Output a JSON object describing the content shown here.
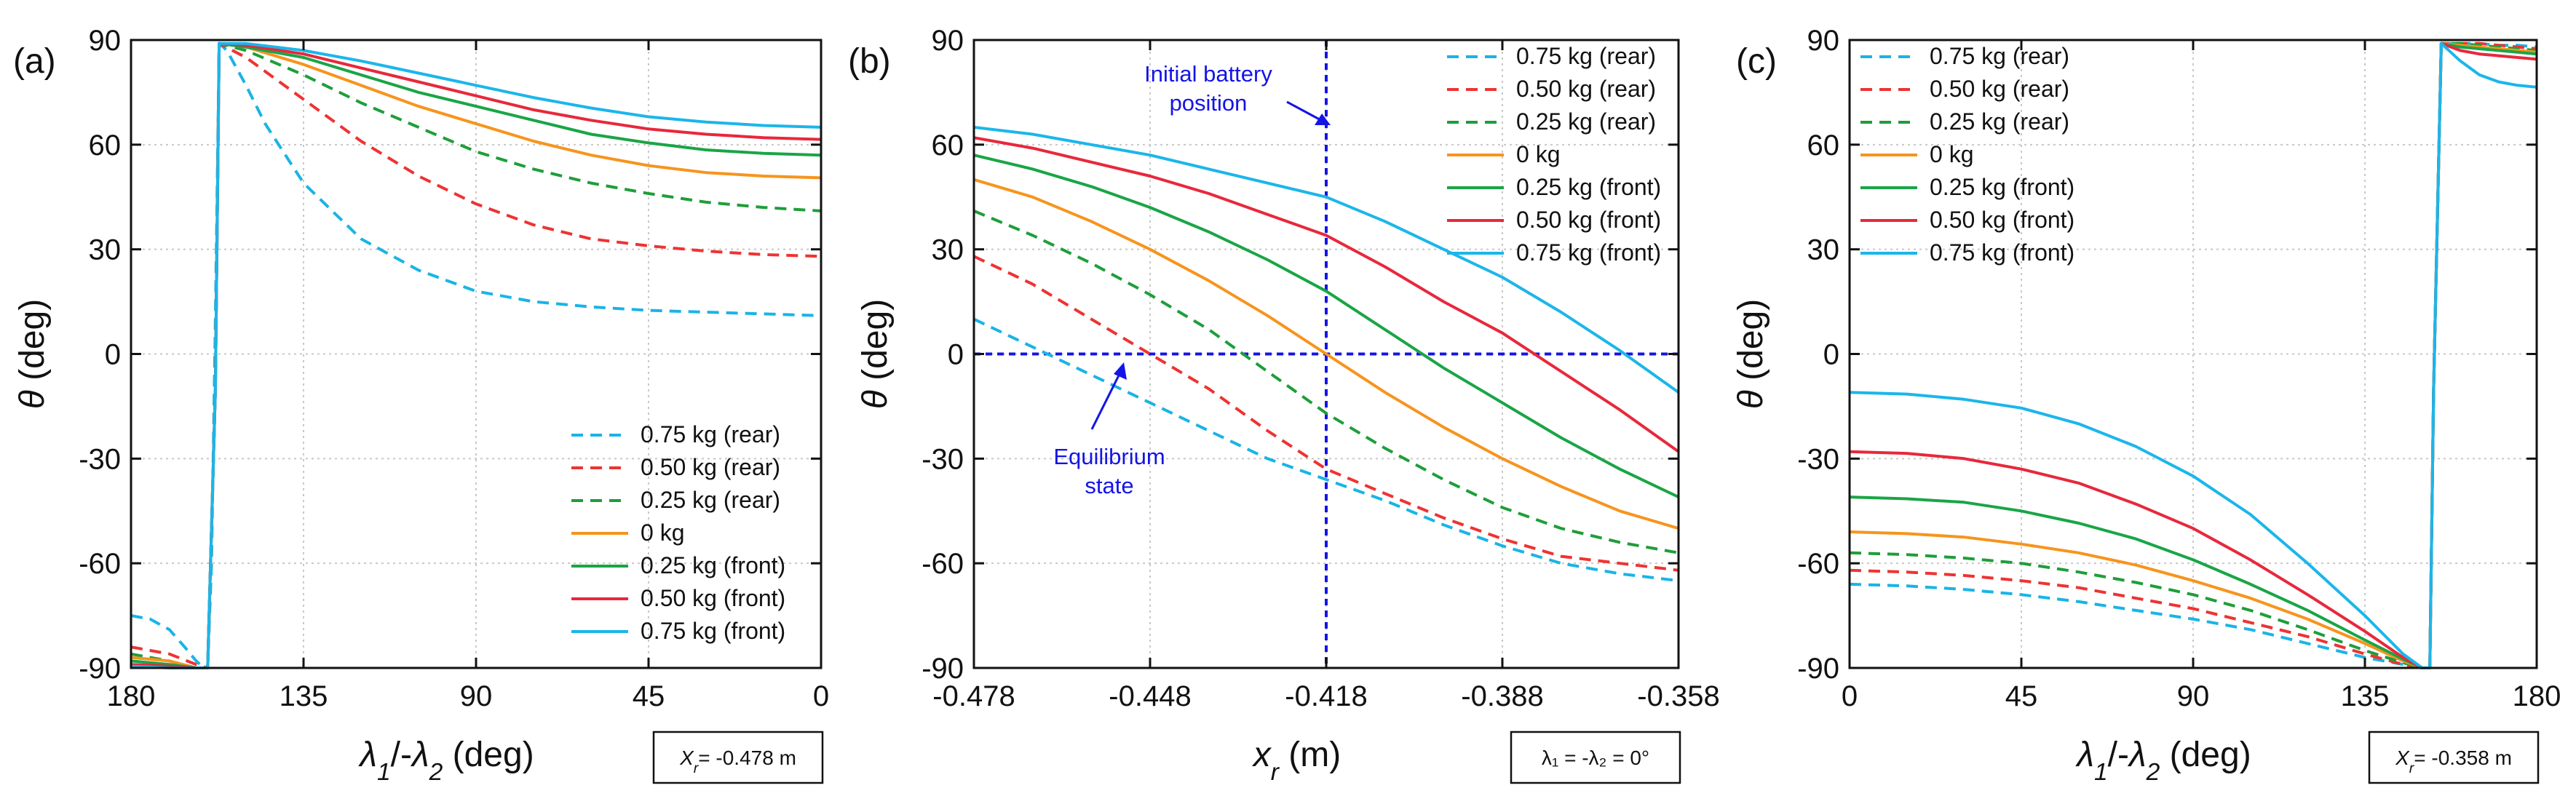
{
  "chart_data": [
    {
      "panel": "(a)",
      "type": "line",
      "xlabel_parts": [
        [
          "λ",
          "1"
        ],
        [
          "/-λ",
          "2"
        ],
        [
          " (deg)",
          ""
        ]
      ],
      "ylabel": "θ (deg)",
      "xlim": [
        180,
        0
      ],
      "ylim": [
        -90,
        90
      ],
      "xticks": [
        "180",
        "135",
        "90",
        "45",
        "0"
      ],
      "xtick_values": [
        180,
        135,
        90,
        45,
        0
      ],
      "yticks": [
        "90",
        "60",
        "30",
        "0",
        "-30",
        "-60",
        "-90"
      ],
      "ytick_values": [
        90,
        60,
        30,
        0,
        -30,
        -60,
        -90
      ],
      "grid": true,
      "legend_position": "bottom-right",
      "annotation_box": "= -0.478 m",
      "annotation_box_var": [
        "X",
        "r"
      ],
      "series": [
        {
          "name": "0.75 kg (rear)",
          "color": "#19b4e6",
          "dash": true,
          "x": [
            180,
            175,
            170,
            166,
            163,
            161,
            160,
            159,
            158,
            157,
            155,
            150,
            145,
            135,
            120,
            105,
            90,
            75,
            60,
            45,
            30,
            15,
            0
          ],
          "y": [
            -75,
            -76,
            -79,
            -84,
            -88,
            -90,
            -90,
            -60,
            10,
            89,
            87,
            77,
            66,
            49,
            33,
            24,
            18,
            15,
            13.5,
            12.5,
            12,
            11.5,
            11
          ]
        },
        {
          "name": "0.50 kg (rear)",
          "color": "#ee3333",
          "dash": true,
          "x": [
            180,
            170,
            163,
            160,
            158,
            157,
            150,
            135,
            120,
            105,
            90,
            75,
            60,
            45,
            30,
            15,
            0
          ],
          "y": [
            -84,
            -86,
            -89,
            -90,
            -10,
            89,
            85,
            73,
            61,
            51,
            43,
            37,
            33,
            31,
            29.5,
            28.5,
            28
          ]
        },
        {
          "name": "0.25 kg (rear)",
          "color": "#1e9e3a",
          "dash": true,
          "x": [
            180,
            170,
            163,
            160,
            158,
            157,
            150,
            135,
            120,
            105,
            90,
            75,
            60,
            45,
            30,
            15,
            0
          ],
          "y": [
            -86,
            -88,
            -90,
            -90,
            -10,
            89,
            87,
            80,
            72,
            65,
            58,
            53,
            49,
            46,
            43.5,
            42,
            41
          ]
        },
        {
          "name": "0 kg",
          "color": "#f7941d",
          "dash": false,
          "x": [
            180,
            170,
            163,
            160,
            158,
            157,
            150,
            135,
            120,
            105,
            90,
            75,
            60,
            45,
            30,
            15,
            0
          ],
          "y": [
            -87,
            -88,
            -90,
            -90,
            -10,
            89,
            88,
            83,
            77,
            71,
            66,
            61,
            57,
            54,
            52,
            51,
            50.5
          ]
        },
        {
          "name": "0.25 kg (front)",
          "color": "#1aa546",
          "dash": false,
          "x": [
            180,
            170,
            163,
            160,
            158,
            157,
            150,
            135,
            120,
            105,
            90,
            75,
            60,
            45,
            30,
            15,
            0
          ],
          "y": [
            -88,
            -89,
            -90,
            -90,
            -10,
            89,
            88,
            85,
            80,
            75,
            71,
            67,
            63,
            60.5,
            58.5,
            57.5,
            57
          ]
        },
        {
          "name": "0.50 kg (front)",
          "color": "#e8283c",
          "dash": false,
          "x": [
            180,
            170,
            163,
            160,
            158,
            157,
            150,
            135,
            120,
            105,
            90,
            75,
            60,
            45,
            30,
            15,
            0
          ],
          "y": [
            -89,
            -89.5,
            -90,
            -90,
            -10,
            89,
            88.5,
            86,
            82,
            78,
            74,
            70,
            67,
            64.5,
            63,
            62,
            61.5
          ]
        },
        {
          "name": "0.75 kg (front)",
          "color": "#1bb6ea",
          "dash": false,
          "x": [
            180,
            170,
            163,
            160,
            158,
            157,
            150,
            135,
            120,
            105,
            90,
            75,
            60,
            45,
            30,
            15,
            0
          ],
          "y": [
            -89.5,
            -90,
            -90,
            -90,
            -10,
            89,
            89,
            87,
            84,
            80.5,
            77,
            73.5,
            70.5,
            68,
            66.5,
            65.5,
            65
          ]
        }
      ]
    },
    {
      "panel": "(b)",
      "type": "line",
      "xlabel_parts": [
        [
          "x",
          "r"
        ],
        [
          " (m)",
          ""
        ]
      ],
      "ylabel": "θ (deg)",
      "xlim": [
        -0.478,
        -0.358
      ],
      "ylim": [
        -90,
        90
      ],
      "xticks": [
        "-0.478",
        "-0.448",
        "-0.418",
        "-0.388",
        "-0.358"
      ],
      "xtick_values": [
        -0.478,
        -0.448,
        -0.418,
        -0.388,
        -0.358
      ],
      "yticks": [
        "90",
        "60",
        "30",
        "0",
        "-30",
        "-60",
        "-90"
      ],
      "ytick_values": [
        90,
        60,
        30,
        0,
        -30,
        -60,
        -90
      ],
      "grid": true,
      "legend_position": "top-right",
      "annotation_box": "λ₁ = -λ₂ = 0°",
      "reference_lines": {
        "vertical_x": -0.418,
        "horizontal_y": 0,
        "color": "#1414e6"
      },
      "annotations": [
        "Initial battery",
        "position",
        "Equilibrium",
        "state"
      ],
      "series": [
        {
          "name": "0.75 kg (rear)",
          "color": "#19b4e6",
          "dash": true,
          "x": [
            -0.478,
            -0.468,
            -0.458,
            -0.448,
            -0.438,
            -0.428,
            -0.418,
            -0.408,
            -0.398,
            -0.388,
            -0.378,
            -0.368,
            -0.358
          ],
          "y": [
            10,
            2,
            -6,
            -14,
            -22,
            -30,
            -36,
            -42,
            -49,
            -55,
            -60,
            -63,
            -65
          ]
        },
        {
          "name": "0.50 kg (rear)",
          "color": "#ee3333",
          "dash": true,
          "x": [
            -0.478,
            -0.468,
            -0.458,
            -0.448,
            -0.438,
            -0.428,
            -0.418,
            -0.408,
            -0.398,
            -0.388,
            -0.378,
            -0.368,
            -0.358
          ],
          "y": [
            28,
            20,
            10,
            0,
            -10,
            -22,
            -33,
            -40,
            -47,
            -53,
            -58,
            -60,
            -62
          ]
        },
        {
          "name": "0.25 kg (rear)",
          "color": "#1e9e3a",
          "dash": true,
          "x": [
            -0.478,
            -0.468,
            -0.458,
            -0.448,
            -0.438,
            -0.428,
            -0.418,
            -0.408,
            -0.398,
            -0.388,
            -0.378,
            -0.368,
            -0.358
          ],
          "y": [
            41,
            34,
            26,
            17,
            7,
            -5,
            -17,
            -27,
            -36,
            -44,
            -50,
            -54,
            -57
          ]
        },
        {
          "name": "0 kg",
          "color": "#f7941d",
          "dash": false,
          "x": [
            -0.478,
            -0.468,
            -0.458,
            -0.448,
            -0.438,
            -0.428,
            -0.418,
            -0.408,
            -0.398,
            -0.388,
            -0.378,
            -0.368,
            -0.358
          ],
          "y": [
            50,
            45,
            38,
            30,
            21,
            11,
            0,
            -11,
            -21,
            -30,
            -38,
            -45,
            -50
          ]
        },
        {
          "name": "0.25 kg (front)",
          "color": "#1aa546",
          "dash": false,
          "x": [
            -0.478,
            -0.468,
            -0.458,
            -0.448,
            -0.438,
            -0.428,
            -0.418,
            -0.408,
            -0.398,
            -0.388,
            -0.378,
            -0.368,
            -0.358
          ],
          "y": [
            57,
            53,
            48,
            42,
            35,
            27,
            18,
            7,
            -4,
            -14,
            -24,
            -33,
            -41
          ]
        },
        {
          "name": "0.50 kg (front)",
          "color": "#e8283c",
          "dash": false,
          "x": [
            -0.478,
            -0.468,
            -0.458,
            -0.448,
            -0.438,
            -0.428,
            -0.418,
            -0.408,
            -0.398,
            -0.388,
            -0.378,
            -0.368,
            -0.358
          ],
          "y": [
            62,
            59,
            55,
            51,
            46,
            40,
            34,
            25,
            15,
            6,
            -5,
            -16,
            -28
          ]
        },
        {
          "name": "0.75 kg (front)",
          "color": "#1bb6ea",
          "dash": false,
          "x": [
            -0.478,
            -0.468,
            -0.458,
            -0.448,
            -0.438,
            -0.428,
            -0.418,
            -0.408,
            -0.398,
            -0.388,
            -0.378,
            -0.368,
            -0.358
          ],
          "y": [
            65,
            63,
            60,
            57,
            53,
            49,
            45,
            38,
            30,
            22,
            12,
            1,
            -11
          ]
        }
      ]
    },
    {
      "panel": "(c)",
      "type": "line",
      "xlabel_parts": [
        [
          "λ",
          "1"
        ],
        [
          "/-λ",
          "2"
        ],
        [
          " (deg)",
          ""
        ]
      ],
      "ylabel": "θ (deg)",
      "xlim": [
        0,
        180
      ],
      "ylim": [
        -90,
        90
      ],
      "xticks": [
        "0",
        "45",
        "90",
        "135",
        "180"
      ],
      "xtick_values": [
        0,
        45,
        90,
        135,
        180
      ],
      "yticks": [
        "90",
        "60",
        "30",
        "0",
        "-30",
        "-60",
        "-90"
      ],
      "ytick_values": [
        90,
        60,
        30,
        0,
        -30,
        -60,
        -90
      ],
      "grid": true,
      "legend_position": "top-left",
      "annotation_box": "= -0.358 m",
      "annotation_box_var": [
        "X",
        "r"
      ],
      "series": [
        {
          "name": "0.75 kg (rear)",
          "color": "#19b4e6",
          "dash": true,
          "x": [
            0,
            15,
            30,
            45,
            60,
            75,
            90,
            105,
            120,
            135,
            145,
            150,
            152,
            153,
            155,
            160,
            165,
            170,
            175,
            180
          ],
          "y": [
            -66,
            -66.5,
            -67.5,
            -69,
            -71,
            -73.5,
            -76,
            -79,
            -83,
            -87,
            -89,
            -90,
            -90,
            -10,
            89,
            89,
            89,
            88.5,
            88.5,
            88
          ]
        },
        {
          "name": "0.50 kg (rear)",
          "color": "#ee3333",
          "dash": true,
          "x": [
            0,
            15,
            30,
            45,
            60,
            75,
            90,
            105,
            120,
            135,
            145,
            150,
            152,
            153,
            155,
            160,
            165,
            170,
            175,
            180
          ],
          "y": [
            -62,
            -62.5,
            -63.5,
            -65,
            -67,
            -70,
            -73,
            -77,
            -81,
            -86,
            -89,
            -90,
            -90,
            -10,
            89,
            89,
            89,
            88.5,
            88,
            87.5
          ]
        },
        {
          "name": "0.25 kg (rear)",
          "color": "#1e9e3a",
          "dash": true,
          "x": [
            0,
            15,
            30,
            45,
            60,
            75,
            90,
            105,
            120,
            135,
            145,
            150,
            152,
            153,
            155,
            160,
            165,
            170,
            175,
            180
          ],
          "y": [
            -57,
            -57.5,
            -58.5,
            -60,
            -62.5,
            -65.5,
            -69,
            -73.5,
            -79,
            -85,
            -88.5,
            -90,
            -90,
            -10,
            89,
            89,
            88.5,
            88,
            87.5,
            87
          ]
        },
        {
          "name": "0 kg",
          "color": "#f7941d",
          "dash": false,
          "x": [
            0,
            15,
            30,
            45,
            60,
            75,
            90,
            105,
            120,
            135,
            145,
            150,
            152,
            153,
            155,
            160,
            165,
            170,
            175,
            180
          ],
          "y": [
            -51,
            -51.5,
            -52.5,
            -54.5,
            -57,
            -60.5,
            -65,
            -70,
            -76,
            -83,
            -88,
            -90,
            -90,
            -10,
            89,
            88.5,
            88,
            87.5,
            87,
            86.5
          ]
        },
        {
          "name": "0.25 kg (front)",
          "color": "#1aa546",
          "dash": false,
          "x": [
            0,
            15,
            30,
            45,
            60,
            75,
            90,
            105,
            120,
            135,
            145,
            150,
            152,
            153,
            155,
            160,
            165,
            170,
            175,
            180
          ],
          "y": [
            -41,
            -41.5,
            -42.5,
            -45,
            -48.5,
            -53,
            -59,
            -66,
            -73.5,
            -82,
            -87.5,
            -90,
            -90,
            -10,
            89,
            88,
            87.5,
            87,
            86.5,
            86
          ]
        },
        {
          "name": "0.50 kg (front)",
          "color": "#e8283c",
          "dash": false,
          "x": [
            0,
            15,
            30,
            45,
            60,
            75,
            90,
            105,
            120,
            135,
            145,
            150,
            152,
            153,
            155,
            160,
            165,
            170,
            175,
            180
          ],
          "y": [
            -28,
            -28.5,
            -30,
            -33,
            -37,
            -43,
            -50,
            -59,
            -69,
            -79.5,
            -87,
            -90,
            -90,
            -10,
            89,
            87,
            86,
            85.5,
            85,
            84.5
          ]
        },
        {
          "name": "0.75 kg (front)",
          "color": "#1bb6ea",
          "dash": false,
          "x": [
            0,
            15,
            30,
            45,
            60,
            75,
            90,
            105,
            120,
            135,
            145,
            150,
            152,
            153,
            155,
            160,
            165,
            170,
            175,
            180
          ],
          "y": [
            -11,
            -11.5,
            -13,
            -15.5,
            -20,
            -26.5,
            -35,
            -46,
            -60,
            -75,
            -86,
            -90,
            -90,
            -10,
            89,
            84,
            80,
            78,
            77,
            76.5
          ]
        }
      ]
    }
  ]
}
